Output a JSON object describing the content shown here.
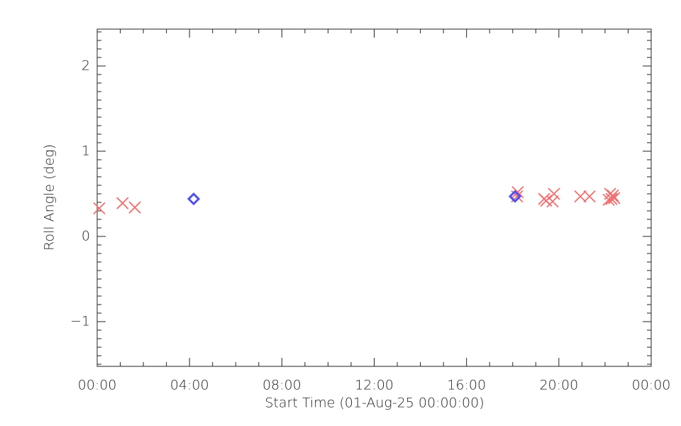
{
  "chart_data": {
    "type": "scatter",
    "xlabel": "Start Time (01-Aug-25 00:00:00)",
    "ylabel": "Roll Angle (deg)",
    "xlim": [
      0,
      24
    ],
    "ylim": [
      -1.525,
      2.433
    ],
    "xticks": [
      {
        "value": 0,
        "label": "00:00"
      },
      {
        "value": 4,
        "label": "04:00"
      },
      {
        "value": 8,
        "label": "08:00"
      },
      {
        "value": 12,
        "label": "12:00"
      },
      {
        "value": 16,
        "label": "16:00"
      },
      {
        "value": 20,
        "label": "20:00"
      },
      {
        "value": 24,
        "label": "00:00"
      }
    ],
    "yticks": [
      {
        "value": -1,
        "label": "−1"
      },
      0,
      1,
      2
    ],
    "series": [
      {
        "color": "#f07070",
        "marker": "x",
        "x": [
          0.09,
          1.1,
          1.63,
          18.22,
          18.19,
          19.36,
          19.45,
          19.79,
          19.73,
          20.93,
          21.33,
          22.22,
          22.28,
          22.34,
          22.4,
          22.16
        ],
        "values": [
          0.33,
          0.39,
          0.34,
          0.52,
          0.47,
          0.44,
          0.42,
          0.5,
          0.41,
          0.47,
          0.47,
          0.5,
          0.44,
          0.48,
          0.45,
          0.43
        ]
      },
      {
        "color": "#5050f0",
        "marker": "diamond",
        "x": [
          4.18,
          18.1
        ],
        "values": [
          0.44,
          0.47
        ]
      }
    ]
  }
}
